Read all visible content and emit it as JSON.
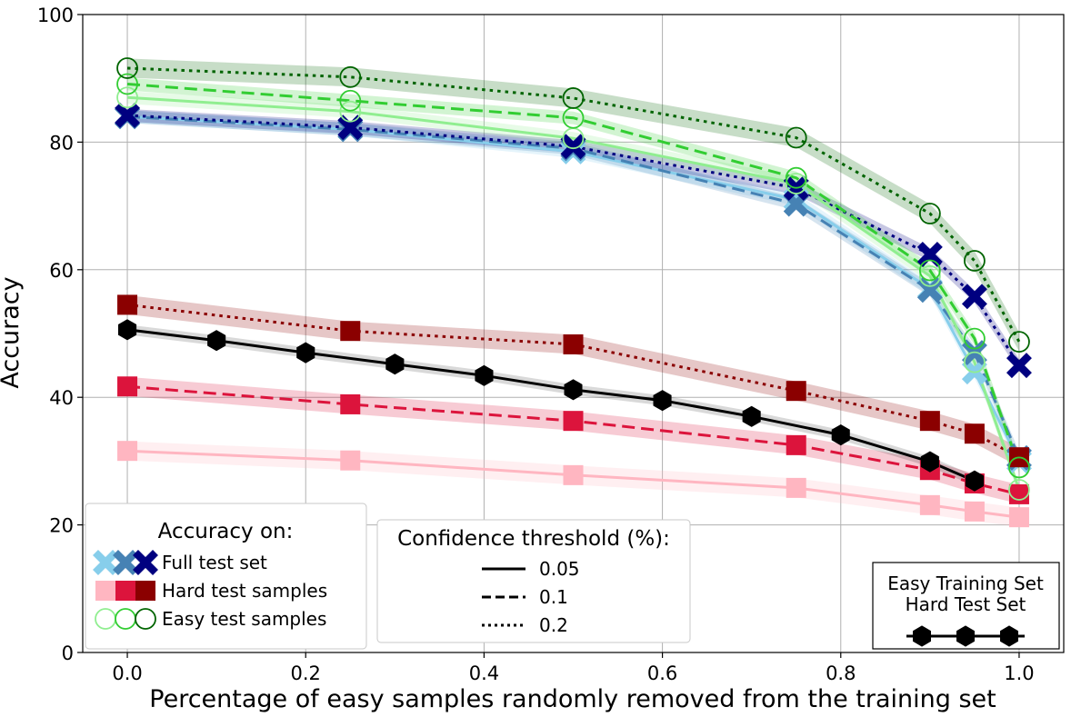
{
  "chart_data": {
    "type": "line",
    "xlabel": "Percentage of easy samples randomly removed from the training set",
    "ylabel": "Accuracy",
    "xlim": [
      -0.05,
      1.05
    ],
    "ylim": [
      0,
      100
    ],
    "x_ticks": [
      "0.0",
      "0.2",
      "0.4",
      "0.6",
      "0.8",
      "1.0"
    ],
    "y_ticks": [
      "0",
      "20",
      "40",
      "60",
      "80",
      "100"
    ],
    "grid": true,
    "x": [
      0.0,
      0.25,
      0.5,
      0.75,
      0.9,
      0.95,
      1.0
    ],
    "series": [
      {
        "key": "full_005",
        "group": "full",
        "threshold": "0.05",
        "color": "#87CEEB",
        "dash": "solid",
        "marker": "x",
        "values": [
          84.0,
          82.0,
          78.5,
          71.0,
          57.0,
          44.0,
          30.0
        ],
        "band": 1.0
      },
      {
        "key": "full_01",
        "group": "full",
        "threshold": "0.1",
        "color": "#4682B4",
        "dash": "dashed",
        "marker": "x",
        "values": [
          84.0,
          82.0,
          79.0,
          70.3,
          56.8,
          47.0,
          30.5
        ],
        "band": 1.0
      },
      {
        "key": "full_02",
        "group": "full",
        "threshold": "0.2",
        "color": "#000080",
        "dash": "dotted",
        "marker": "x",
        "values": [
          84.2,
          82.3,
          79.3,
          72.8,
          62.4,
          55.8,
          45.0
        ],
        "band": 1.0
      },
      {
        "key": "hard_005",
        "group": "hard",
        "threshold": "0.05",
        "color": "#FFB6C1",
        "dash": "solid",
        "marker": "s",
        "values": [
          31.6,
          30.1,
          27.8,
          25.8,
          23.1,
          22.1,
          21.2
        ],
        "band": 1.5
      },
      {
        "key": "hard_01",
        "group": "hard",
        "threshold": "0.1",
        "color": "#DC143C",
        "dash": "dashed",
        "marker": "s",
        "values": [
          41.7,
          38.9,
          36.3,
          32.5,
          28.6,
          26.5,
          24.8
        ],
        "band": 1.5
      },
      {
        "key": "hard_02",
        "group": "hard",
        "threshold": "0.2",
        "color": "#8B0000",
        "dash": "dotted",
        "marker": "s",
        "values": [
          54.5,
          50.4,
          48.3,
          41.0,
          36.3,
          34.3,
          30.6
        ],
        "band": 1.5
      },
      {
        "key": "easy_005",
        "group": "easy",
        "threshold": "0.05",
        "color": "#90EE90",
        "dash": "solid",
        "marker": "o",
        "values": [
          87.0,
          84.8,
          80.6,
          73.5,
          59.0,
          45.5,
          25.5
        ],
        "band": 1.0
      },
      {
        "key": "easy_01",
        "group": "easy",
        "threshold": "0.1",
        "color": "#32CD32",
        "dash": "dashed",
        "marker": "o",
        "values": [
          89.1,
          86.5,
          83.8,
          74.4,
          59.9,
          49.2,
          29.0
        ],
        "band": 1.0
      },
      {
        "key": "easy_02",
        "group": "easy",
        "threshold": "0.2",
        "color": "#006400",
        "dash": "dotted",
        "marker": "o",
        "values": [
          91.6,
          90.2,
          86.9,
          80.7,
          68.8,
          61.4,
          48.7
        ],
        "band": 1.5
      }
    ],
    "baseline": {
      "color": "#000000",
      "x": [
        0.0,
        0.1,
        0.2,
        0.3,
        0.4,
        0.5,
        0.6,
        0.7,
        0.8,
        0.9,
        0.95
      ],
      "values": [
        50.6,
        48.9,
        47.0,
        45.2,
        43.4,
        41.2,
        39.5,
        37.0,
        34.1,
        29.9,
        26.9
      ]
    },
    "legend_accuracy": {
      "title": "Accuracy on:",
      "position": "lower-left",
      "entries": [
        {
          "label": "Full test set",
          "marker": "x",
          "colors": [
            "#87CEEB",
            "#4682B4",
            "#000080"
          ]
        },
        {
          "label": "Hard test samples",
          "marker": "s",
          "colors": [
            "#FFB6C1",
            "#DC143C",
            "#8B0000"
          ]
        },
        {
          "label": "Easy test samples",
          "marker": "o",
          "colors": [
            "#90EE90",
            "#32CD32",
            "#006400"
          ]
        }
      ]
    },
    "legend_threshold": {
      "title": "Confidence threshold (%):",
      "position": "lower-center",
      "entries": [
        {
          "label": "0.05",
          "dash": "solid"
        },
        {
          "label": "0.1",
          "dash": "dashed"
        },
        {
          "label": "0.2",
          "dash": "dotted"
        }
      ]
    },
    "legend_baseline": {
      "line1": "Easy Training Set",
      "line2": "Hard Test Set",
      "position": "lower-right"
    }
  }
}
